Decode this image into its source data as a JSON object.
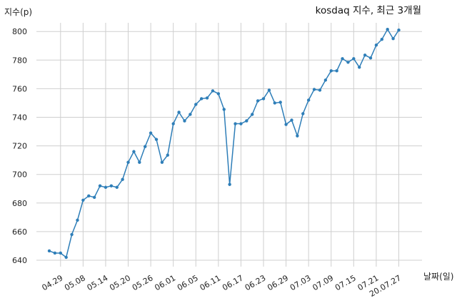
{
  "chart_data": {
    "type": "line",
    "title": "kosdaq 지수, 최근 3개월",
    "xlabel": "날짜(일)",
    "ylabel": "지수(p)",
    "ylim": [
      640,
      805
    ],
    "yticks": [
      640,
      660,
      680,
      700,
      720,
      740,
      760,
      780,
      800
    ],
    "grid": true,
    "color": "#2e7eb8",
    "xticks": [
      {
        "label": "04.29",
        "index": 2
      },
      {
        "label": "05.08",
        "index": 6
      },
      {
        "label": "05.14",
        "index": 10
      },
      {
        "label": "05.20",
        "index": 14
      },
      {
        "label": "05.26",
        "index": 18
      },
      {
        "label": "06.01",
        "index": 22
      },
      {
        "label": "06.05",
        "index": 26
      },
      {
        "label": "06.11",
        "index": 30
      },
      {
        "label": "06.17",
        "index": 34
      },
      {
        "label": "06.23",
        "index": 38
      },
      {
        "label": "06.29",
        "index": 42
      },
      {
        "label": "07.03",
        "index": 46
      },
      {
        "label": "07.09",
        "index": 50
      },
      {
        "label": "07.15",
        "index": 54
      },
      {
        "label": "07.21",
        "index": 58
      },
      {
        "label": "20.07.27",
        "index": 62
      }
    ],
    "values": [
      646.5,
      645,
      645,
      642,
      658,
      668,
      682,
      685,
      684,
      692,
      691,
      692,
      691,
      696.5,
      708.5,
      716,
      708.5,
      719.5,
      729,
      724.5,
      708.5,
      713.5,
      735.5,
      743.5,
      737.5,
      742,
      749,
      753,
      753.5,
      758.5,
      756.5,
      745.5,
      693,
      735.5,
      735.5,
      737.5,
      742,
      751.5,
      753,
      759,
      750,
      750.5,
      735,
      738,
      727,
      742.5,
      752,
      759.5,
      759,
      766,
      772.5,
      772.5,
      781,
      778.5,
      781,
      775,
      783.5,
      781.5,
      790.5,
      794.5,
      801.5,
      795,
      801
    ]
  }
}
